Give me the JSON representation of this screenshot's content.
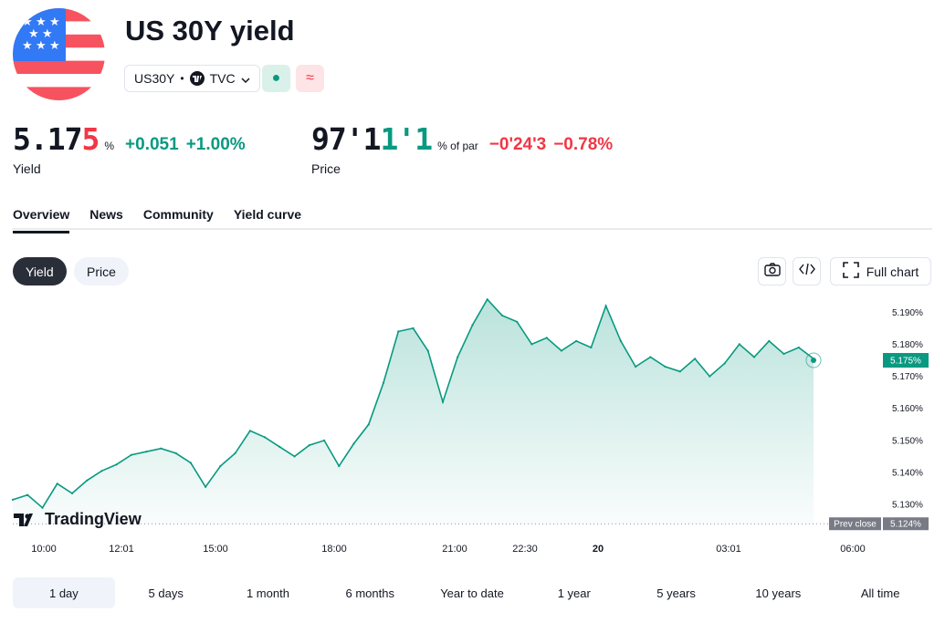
{
  "header": {
    "title": "US 30Y yield",
    "symbol": "US30Y",
    "separator": "•",
    "exchange": "TVC",
    "market_status_symbol": "●",
    "delay_status_symbol": "≈"
  },
  "yield_quote": {
    "value_main": "5.17",
    "value_last": "5",
    "unit": "%",
    "change": "+0.051",
    "change_percent": "+1.00%",
    "label": "Yield"
  },
  "price_quote": {
    "value_main": "97'1",
    "value_last": "1'1",
    "unit": "% of par",
    "change": "−0'24'3",
    "change_percent": "−0.78%",
    "label": "Price"
  },
  "tabs": [
    "Overview",
    "News",
    "Community",
    "Yield curve"
  ],
  "chart_toggle": {
    "yield": "Yield",
    "price": "Price"
  },
  "toolbar": {
    "full_chart": "Full chart"
  },
  "branding": {
    "logo_text": "TradingView"
  },
  "time_ranges": [
    "1 day",
    "5 days",
    "1 month",
    "6 months",
    "Year to date",
    "1 year",
    "5 years",
    "10 years",
    "All time"
  ],
  "colors": {
    "line": "#089981",
    "negative": "#f23645",
    "text": "#131722"
  },
  "chart_data": {
    "type": "area",
    "x_tick_labels": [
      "10:00",
      "12:01",
      "15:00",
      "18:00",
      "21:00",
      "22:30",
      "20",
      "03:01",
      "06:00"
    ],
    "y_ticks": [
      "5.130%",
      "5.140%",
      "5.150%",
      "5.160%",
      "5.170%",
      "5.180%",
      "5.190%"
    ],
    "ylim": [
      5.1235,
      5.1935
    ],
    "last_value": 5.175,
    "last_value_label": "5.175%",
    "prev_close": 5.124,
    "prev_close_title": "Prev close",
    "prev_close_label": "5.124%",
    "x": [
      "10:00",
      "10:30",
      "11:00",
      "11:30",
      "12:00",
      "12:30",
      "13:00",
      "13:30",
      "14:00",
      "14:30",
      "15:00",
      "15:30",
      "16:00",
      "16:30",
      "17:00",
      "17:30",
      "18:00",
      "18:30",
      "19:00",
      "19:30",
      "20:00",
      "20:30",
      "21:00",
      "21:30",
      "22:00",
      "22:15",
      "22:30",
      "22:45",
      "23:00",
      "23:15",
      "23:30",
      "23:45",
      "00:00",
      "00:15",
      "00:30",
      "00:45",
      "01:00",
      "01:15",
      "01:30",
      "01:45",
      "02:00",
      "02:15",
      "02:30",
      "02:45",
      "03:00",
      "03:15",
      "03:30",
      "03:45",
      "04:00",
      "04:15",
      "04:30",
      "04:45",
      "05:00",
      "05:15",
      "05:30"
    ],
    "values": [
      5.1315,
      5.133,
      5.129,
      5.1365,
      5.1335,
      5.1375,
      5.1405,
      5.1425,
      5.1455,
      5.1465,
      5.1475,
      5.146,
      5.143,
      5.1355,
      5.142,
      5.146,
      5.153,
      5.151,
      5.148,
      5.145,
      5.1485,
      5.15,
      5.142,
      5.149,
      5.155,
      5.168,
      5.184,
      5.185,
      5.178,
      5.162,
      5.176,
      5.186,
      5.194,
      5.189,
      5.187,
      5.18,
      5.182,
      5.178,
      5.181,
      5.179,
      5.192,
      5.181,
      5.173,
      5.176,
      5.173,
      5.1715,
      5.1755,
      5.17,
      5.174,
      5.18,
      5.176,
      5.181,
      5.177,
      5.179,
      5.1755
    ]
  }
}
